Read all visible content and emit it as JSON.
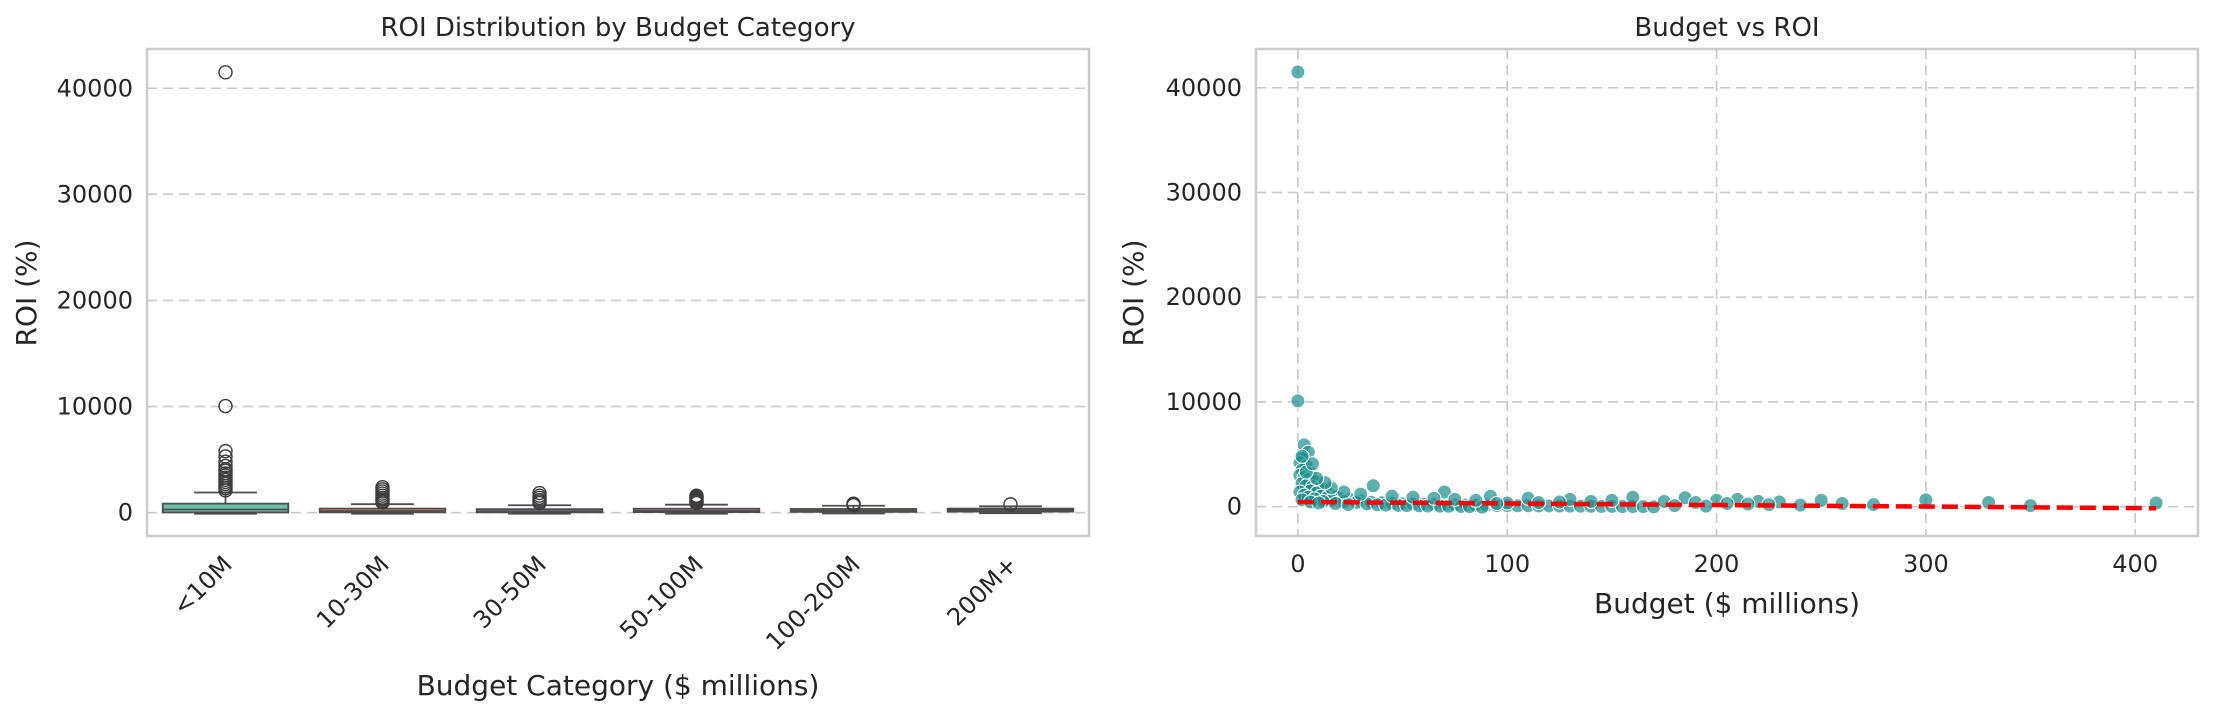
{
  "chart_data": [
    {
      "type": "box",
      "title": "ROI Distribution by Budget Category",
      "xlabel": "Budget Category ($ millions)",
      "ylabel": "ROI (%)",
      "ylim": [
        -2200,
        43700
      ],
      "yticks": [
        0,
        10000,
        20000,
        30000,
        40000
      ],
      "grid": "y",
      "categories": [
        "<10M",
        "10-30M",
        "30-50M",
        "50-100M",
        "100-200M",
        "200M+"
      ],
      "colors": [
        "#66c2a5",
        "#fc8d62",
        "#8da0cb",
        "#e78ac3",
        "#a6d854",
        "#ffd92f"
      ],
      "boxes": [
        {
          "category": "<10M",
          "whislo": -100,
          "q1": 20,
          "median": 300,
          "q3": 850,
          "whishi": 1900,
          "fliers": [
            41500,
            10050,
            5800,
            5300,
            4800,
            4400,
            4100,
            3950,
            3700,
            3500,
            3300,
            3100,
            2900,
            2700,
            2500,
            2300,
            2100
          ]
        },
        {
          "category": "10-30M",
          "whislo": -100,
          "q1": 30,
          "median": 150,
          "q3": 380,
          "whishi": 800,
          "fliers": [
            2400,
            2200,
            2000,
            1800,
            1600,
            1400,
            1250,
            1100,
            950
          ]
        },
        {
          "category": "30-50M",
          "whislo": -100,
          "q1": 30,
          "median": 130,
          "q3": 330,
          "whishi": 700,
          "fliers": [
            1850,
            1600,
            1400,
            1200,
            1050,
            900
          ]
        },
        {
          "category": "50-100M",
          "whislo": -100,
          "q1": 50,
          "median": 170,
          "q3": 370,
          "whishi": 750,
          "fliers": [
            1600,
            1500,
            1400,
            1300,
            1200,
            1100,
            1000,
            900
          ]
        },
        {
          "category": "100-200M",
          "whislo": -80,
          "q1": 70,
          "median": 190,
          "q3": 350,
          "whishi": 650,
          "fliers": [
            850,
            750,
            700
          ]
        },
        {
          "category": "200M+",
          "whislo": -50,
          "q1": 100,
          "median": 220,
          "q3": 380,
          "whishi": 600,
          "fliers": [
            780
          ]
        }
      ]
    },
    {
      "type": "scatter",
      "title": "Budget vs ROI",
      "xlabel": "Budget ($ millions)",
      "ylabel": "ROI (%)",
      "xlim": [
        -20,
        430
      ],
      "ylim": [
        -2800,
        43700
      ],
      "xticks": [
        0,
        100,
        200,
        300,
        400
      ],
      "yticks": [
        0,
        10000,
        20000,
        30000,
        40000
      ],
      "grid": "both",
      "point_color": "#1a8f8f",
      "trend_color": "#ff0000",
      "trend_line": {
        "x": [
          0,
          410
        ],
        "y": [
          450,
          -150
        ]
      },
      "points": [
        [
          0,
          41500
        ],
        [
          0,
          10100
        ],
        [
          3,
          5900
        ],
        [
          5,
          5200
        ],
        [
          2,
          4600
        ],
        [
          1,
          4200
        ],
        [
          4,
          3900
        ],
        [
          2,
          3500
        ],
        [
          6,
          3200
        ],
        [
          1,
          3000
        ],
        [
          3,
          2800
        ],
        [
          5,
          2600
        ],
        [
          8,
          2400
        ],
        [
          2,
          2200
        ],
        [
          4,
          2000
        ],
        [
          7,
          1900
        ],
        [
          10,
          1700
        ],
        [
          12,
          1600
        ],
        [
          6,
          1500
        ],
        [
          1,
          1400
        ],
        [
          9,
          1300
        ],
        [
          15,
          1200
        ],
        [
          3,
          1100
        ],
        [
          11,
          1000
        ],
        [
          18,
          950
        ],
        [
          5,
          900
        ],
        [
          14,
          850
        ],
        [
          20,
          800
        ],
        [
          8,
          750
        ],
        [
          25,
          700
        ],
        [
          2,
          650
        ],
        [
          16,
          600
        ],
        [
          30,
          550
        ],
        [
          12,
          500
        ],
        [
          22,
          480
        ],
        [
          6,
          450
        ],
        [
          35,
          420
        ],
        [
          28,
          400
        ],
        [
          40,
          380
        ],
        [
          10,
          350
        ],
        [
          45,
          330
        ],
        [
          18,
          300
        ],
        [
          50,
          280
        ],
        [
          33,
          260
        ],
        [
          55,
          250
        ],
        [
          60,
          230
        ],
        [
          24,
          210
        ],
        [
          65,
          200
        ],
        [
          70,
          190
        ],
        [
          38,
          180
        ],
        [
          75,
          170
        ],
        [
          80,
          160
        ],
        [
          42,
          150
        ],
        [
          85,
          140
        ],
        [
          90,
          130
        ],
        [
          48,
          120
        ],
        [
          95,
          110
        ],
        [
          100,
          100
        ],
        [
          52,
          95
        ],
        [
          105,
          90
        ],
        [
          110,
          85
        ],
        [
          58,
          80
        ],
        [
          115,
          75
        ],
        [
          120,
          70
        ],
        [
          62,
          65
        ],
        [
          125,
          60
        ],
        [
          130,
          55
        ],
        [
          68,
          50
        ],
        [
          135,
          45
        ],
        [
          140,
          40
        ],
        [
          72,
          35
        ],
        [
          145,
          30
        ],
        [
          150,
          25
        ],
        [
          78,
          20
        ],
        [
          155,
          15
        ],
        [
          160,
          10
        ],
        [
          82,
          5
        ],
        [
          165,
          0
        ],
        [
          170,
          -20
        ],
        [
          88,
          -40
        ],
        [
          36,
          2000
        ],
        [
          70,
          1400
        ],
        [
          92,
          1000
        ],
        [
          110,
          800
        ],
        [
          130,
          700
        ],
        [
          160,
          900
        ],
        [
          185,
          850
        ],
        [
          200,
          600
        ],
        [
          210,
          700
        ],
        [
          220,
          500
        ],
        [
          230,
          450
        ],
        [
          250,
          600
        ],
        [
          260,
          300
        ],
        [
          275,
          200
        ],
        [
          300,
          650
        ],
        [
          330,
          400
        ],
        [
          350,
          100
        ],
        [
          410,
          350
        ],
        [
          175,
          500
        ],
        [
          190,
          400
        ],
        [
          205,
          300
        ],
        [
          215,
          250
        ],
        [
          225,
          200
        ],
        [
          240,
          150
        ],
        [
          180,
          100
        ],
        [
          195,
          50
        ],
        [
          150,
          600
        ],
        [
          140,
          500
        ],
        [
          125,
          450
        ],
        [
          115,
          400
        ],
        [
          100,
          350
        ],
        [
          95,
          300
        ],
        [
          85,
          600
        ],
        [
          75,
          700
        ],
        [
          65,
          800
        ],
        [
          55,
          900
        ],
        [
          45,
          1000
        ],
        [
          30,
          1200
        ],
        [
          22,
          1400
        ],
        [
          16,
          1800
        ],
        [
          13,
          2300
        ],
        [
          9,
          2700
        ],
        [
          4,
          3300
        ],
        [
          7,
          4100
        ],
        [
          2,
          4800
        ]
      ]
    }
  ]
}
